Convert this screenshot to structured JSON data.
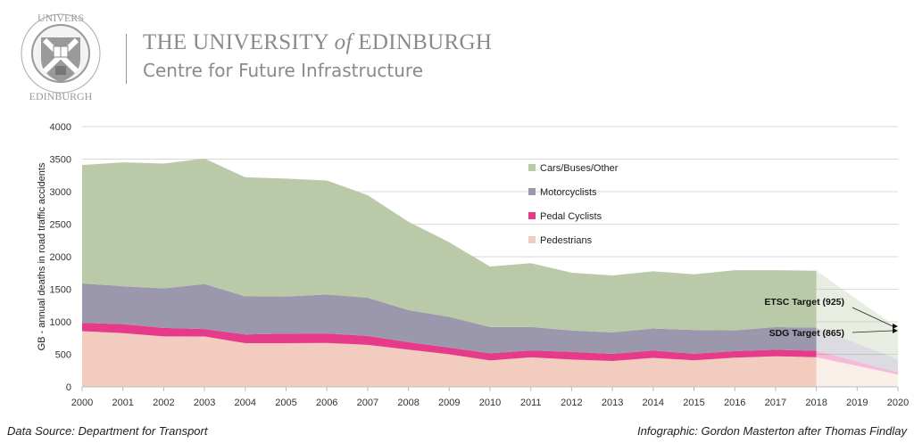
{
  "header": {
    "logo_text": "THE UNIVERSITY OF EDINBURGH",
    "title_pre": "THE UNIVERSITY",
    "title_of": "of",
    "title_post": "EDINBURGH",
    "subtitle": "Centre for Future Infrastructure"
  },
  "footer": {
    "source": "Data Source: Department for Transport",
    "credit": "Infographic: Gordon Masterton after Thomas Findlay"
  },
  "chart_data": {
    "type": "area",
    "stacked": true,
    "title": "",
    "xlabel": "",
    "ylabel": "GB - annual deaths in road traffic accidents",
    "ylim": [
      0,
      4000
    ],
    "yticks": [
      0,
      500,
      1000,
      1500,
      2000,
      2500,
      3000,
      3500,
      4000
    ],
    "grid": true,
    "legend_position": "center-right",
    "x": [
      2000,
      2001,
      2002,
      2003,
      2004,
      2005,
      2006,
      2007,
      2008,
      2009,
      2010,
      2011,
      2012,
      2013,
      2014,
      2015,
      2016,
      2017,
      2018
    ],
    "series": [
      {
        "name": "Pedestrians",
        "color": "#f2cdbf",
        "values": [
          857,
          826,
          775,
          774,
          671,
          671,
          675,
          646,
          572,
          500,
          405,
          453,
          420,
          398,
          446,
          408,
          448,
          470,
          456
        ]
      },
      {
        "name": "Pedal Cyclists",
        "color": "#e63a8a",
        "values": [
          127,
          138,
          130,
          114,
          134,
          148,
          146,
          136,
          115,
          104,
          111,
          107,
          118,
          109,
          113,
          100,
          102,
          101,
          99
        ]
      },
      {
        "name": "Motorcyclists",
        "color": "#9b98ad",
        "values": [
          605,
          583,
          609,
          693,
          585,
          569,
          599,
          588,
          493,
          472,
          403,
          362,
          328,
          331,
          339,
          365,
          319,
          349,
          354
        ]
      },
      {
        "name": "Cars/Buses/Other",
        "color": "#bacaa9",
        "values": [
          1820,
          1903,
          1917,
          1927,
          1831,
          1813,
          1752,
          1576,
          1358,
          1146,
          931,
          979,
          888,
          875,
          877,
          857,
          923,
          873,
          875
        ]
      }
    ],
    "projection": {
      "x": [
        2018,
        2020
      ],
      "values": {
        "Pedestrians": [
          456,
          190
        ],
        "Pedal Cyclists": [
          99,
          30
        ],
        "Motorcyclists": [
          354,
          200
        ],
        "Cars/Buses/Other": [
          875,
          480
        ]
      }
    },
    "xtick_labels": [
      "2000",
      "2001",
      "2002",
      "2003",
      "2004",
      "2005",
      "2006",
      "2007",
      "2008",
      "2009",
      "2010",
      "2011",
      "2012",
      "2013",
      "2014",
      "2015",
      "2016",
      "2017",
      "2018",
      "2019",
      "2020"
    ],
    "annotations": [
      {
        "text": "ETSC Target (925)",
        "year": 2020,
        "value": 925
      },
      {
        "text": "SDG Target (865)",
        "year": 2020,
        "value": 865
      }
    ]
  }
}
